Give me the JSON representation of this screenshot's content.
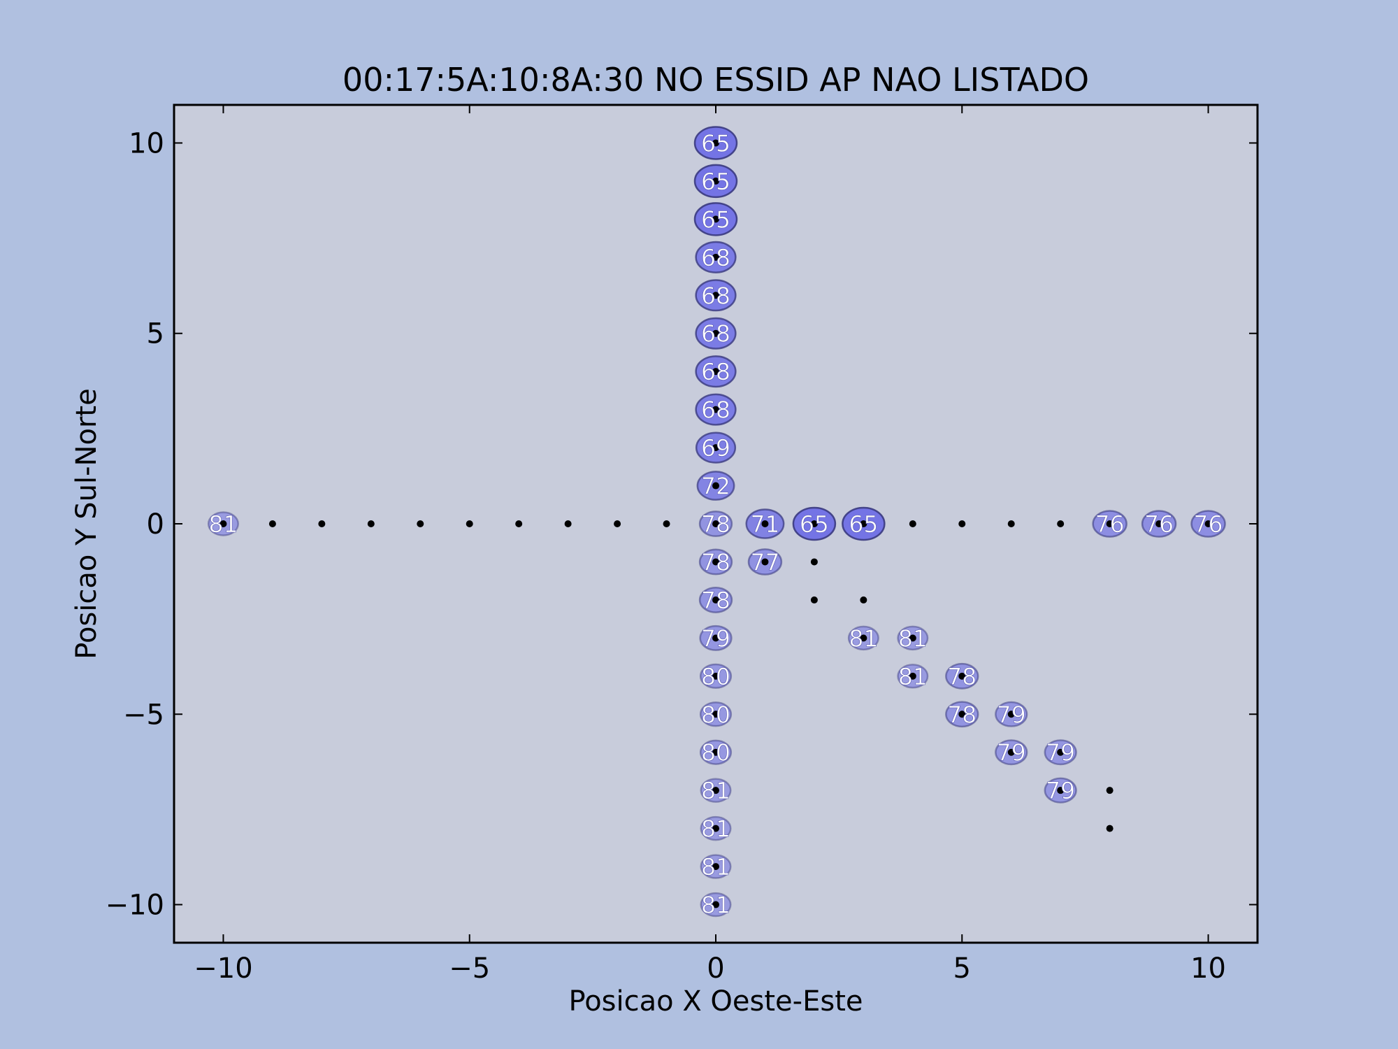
{
  "colors": {
    "figure_background": "#b0c0e0",
    "plot_background": "#c8ccdb",
    "ellipse_fill": "#6a6ae6",
    "ellipse_edge": "#3a3a80",
    "point_color": "#000000",
    "label_color": "#ffffff"
  },
  "chart_data": {
    "type": "scatter",
    "title": "00:17:5A:10:8A:30 NO ESSID AP NAO LISTADO",
    "xlabel": "Posicao X Oeste-Este",
    "ylabel": "Posicao Y Sul-Norte",
    "xlim": [
      -11,
      11
    ],
    "ylim": [
      -11,
      11
    ],
    "xticks": [
      -10,
      -5,
      0,
      5,
      10
    ],
    "xtick_labels": [
      "−10",
      "−5",
      "0",
      "5",
      "10"
    ],
    "yticks": [
      -10,
      -5,
      0,
      5,
      10
    ],
    "ytick_labels": [
      "−10",
      "−5",
      "0",
      "5",
      "10"
    ],
    "grid": false,
    "points": [
      {
        "x": 0,
        "y": 10,
        "label": "65"
      },
      {
        "x": 0,
        "y": 9,
        "label": "65"
      },
      {
        "x": 0,
        "y": 8,
        "label": "65"
      },
      {
        "x": 0,
        "y": 7,
        "label": "68"
      },
      {
        "x": 0,
        "y": 6,
        "label": "68"
      },
      {
        "x": 0,
        "y": 5,
        "label": "68"
      },
      {
        "x": 0,
        "y": 4,
        "label": "68"
      },
      {
        "x": 0,
        "y": 3,
        "label": "68"
      },
      {
        "x": 0,
        "y": 2,
        "label": "69"
      },
      {
        "x": 0,
        "y": 1,
        "label": "72"
      },
      {
        "x": 0,
        "y": 0,
        "label": "78"
      },
      {
        "x": 0,
        "y": -1,
        "label": "78"
      },
      {
        "x": 0,
        "y": -2,
        "label": "78"
      },
      {
        "x": 0,
        "y": -3,
        "label": "79"
      },
      {
        "x": 0,
        "y": -4,
        "label": "80"
      },
      {
        "x": 0,
        "y": -5,
        "label": "80"
      },
      {
        "x": 0,
        "y": -6,
        "label": "80"
      },
      {
        "x": 0,
        "y": -7,
        "label": "81"
      },
      {
        "x": 0,
        "y": -8,
        "label": "81"
      },
      {
        "x": 0,
        "y": -9,
        "label": "81"
      },
      {
        "x": 0,
        "y": -10,
        "label": "81"
      },
      {
        "x": -10,
        "y": 0,
        "label": "81"
      },
      {
        "x": -9,
        "y": 0,
        "label": null
      },
      {
        "x": -8,
        "y": 0,
        "label": null
      },
      {
        "x": -7,
        "y": 0,
        "label": null
      },
      {
        "x": -6,
        "y": 0,
        "label": null
      },
      {
        "x": -5,
        "y": 0,
        "label": null
      },
      {
        "x": -4,
        "y": 0,
        "label": null
      },
      {
        "x": -3,
        "y": 0,
        "label": null
      },
      {
        "x": -2,
        "y": 0,
        "label": null
      },
      {
        "x": -1,
        "y": 0,
        "label": null
      },
      {
        "x": 1,
        "y": 0,
        "label": "71"
      },
      {
        "x": 2,
        "y": 0,
        "label": "65"
      },
      {
        "x": 3,
        "y": 0,
        "label": "65"
      },
      {
        "x": 4,
        "y": 0,
        "label": null
      },
      {
        "x": 5,
        "y": 0,
        "label": null
      },
      {
        "x": 6,
        "y": 0,
        "label": null
      },
      {
        "x": 7,
        "y": 0,
        "label": null
      },
      {
        "x": 8,
        "y": 0,
        "label": "76"
      },
      {
        "x": 9,
        "y": 0,
        "label": "76"
      },
      {
        "x": 10,
        "y": 0,
        "label": "76"
      },
      {
        "x": 1,
        "y": -1,
        "label": "77"
      },
      {
        "x": 2,
        "y": -1,
        "label": null
      },
      {
        "x": 2,
        "y": -2,
        "label": null
      },
      {
        "x": 3,
        "y": -2,
        "label": null
      },
      {
        "x": 3,
        "y": -3,
        "label": "81"
      },
      {
        "x": 4,
        "y": -3,
        "label": "81"
      },
      {
        "x": 4,
        "y": -4,
        "label": "81"
      },
      {
        "x": 5,
        "y": -4,
        "label": "78"
      },
      {
        "x": 5,
        "y": -5,
        "label": "78"
      },
      {
        "x": 6,
        "y": -5,
        "label": "79"
      },
      {
        "x": 6,
        "y": -6,
        "label": "79"
      },
      {
        "x": 7,
        "y": -6,
        "label": "79"
      },
      {
        "x": 7,
        "y": -7,
        "label": "79"
      },
      {
        "x": 8,
        "y": -7,
        "label": null
      },
      {
        "x": 8,
        "y": -8,
        "label": null
      }
    ]
  }
}
